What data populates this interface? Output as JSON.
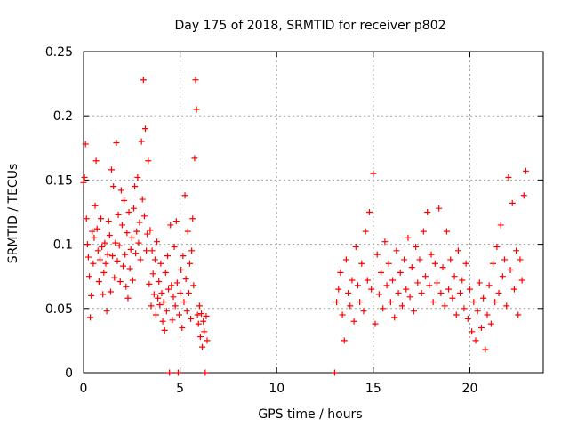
{
  "chart_data": {
    "type": "scatter",
    "title": "Day 175 of 2018, SRMTID for receiver p802",
    "xlabel": "GPS time / hours",
    "ylabel": "SRMTID / TECUs",
    "xlim": [
      0,
      23.8
    ],
    "ylim": [
      0,
      0.25
    ],
    "xticks": [
      0,
      5,
      10,
      15,
      20
    ],
    "yticks": [
      0,
      0.05,
      0.1,
      0.15,
      0.2,
      0.25
    ],
    "ytick_labels": [
      "0",
      "0.05",
      "0.1",
      "0.15",
      "0.2",
      "0.25"
    ],
    "grid": true,
    "marker": "+",
    "color": "#ff0000",
    "series": [
      {
        "name": "SRMTID",
        "points": [
          [
            0.0,
            0.148
          ],
          [
            0.05,
            0.152
          ],
          [
            0.1,
            0.178
          ],
          [
            0.15,
            0.12
          ],
          [
            0.2,
            0.1
          ],
          [
            0.25,
            0.09
          ],
          [
            0.3,
            0.075
          ],
          [
            0.35,
            0.043
          ],
          [
            0.4,
            0.06
          ],
          [
            0.45,
            0.11
          ],
          [
            0.5,
            0.085
          ],
          [
            0.55,
            0.105
          ],
          [
            0.6,
            0.13
          ],
          [
            0.65,
            0.165
          ],
          [
            0.7,
            0.112
          ],
          [
            0.75,
            0.095
          ],
          [
            0.8,
            0.071
          ],
          [
            0.85,
            0.088
          ],
          [
            0.9,
            0.12
          ],
          [
            0.95,
            0.098
          ],
          [
            1.0,
            0.061
          ],
          [
            1.05,
            0.078
          ],
          [
            1.1,
            0.101
          ],
          [
            1.15,
            0.085
          ],
          [
            1.2,
            0.048
          ],
          [
            1.25,
            0.092
          ],
          [
            1.3,
            0.118
          ],
          [
            1.35,
            0.107
          ],
          [
            1.4,
            0.063
          ],
          [
            1.45,
            0.158
          ],
          [
            1.5,
            0.091
          ],
          [
            1.55,
            0.145
          ],
          [
            1.6,
            0.074
          ],
          [
            1.65,
            0.101
          ],
          [
            1.7,
            0.179
          ],
          [
            1.75,
            0.087
          ],
          [
            1.8,
            0.123
          ],
          [
            1.85,
            0.099
          ],
          [
            1.9,
            0.071
          ],
          [
            1.95,
            0.142
          ],
          [
            2.0,
            0.115
          ],
          [
            2.05,
            0.083
          ],
          [
            2.1,
            0.134
          ],
          [
            2.15,
            0.092
          ],
          [
            2.2,
            0.067
          ],
          [
            2.25,
            0.109
          ],
          [
            2.3,
            0.058
          ],
          [
            2.35,
            0.125
          ],
          [
            2.4,
            0.081
          ],
          [
            2.45,
            0.096
          ],
          [
            2.5,
            0.105
          ],
          [
            2.55,
            0.072
          ],
          [
            2.6,
            0.128
          ],
          [
            2.65,
            0.145
          ],
          [
            2.7,
            0.093
          ],
          [
            2.75,
            0.11
          ],
          [
            2.8,
            0.152
          ],
          [
            2.85,
            0.101
          ],
          [
            2.9,
            0.117
          ],
          [
            2.95,
            0.088
          ],
          [
            3.0,
            0.18
          ],
          [
            3.05,
            0.135
          ],
          [
            3.1,
            0.228
          ],
          [
            3.15,
            0.122
          ],
          [
            3.2,
            0.19
          ],
          [
            3.25,
            0.095
          ],
          [
            3.3,
            0.108
          ],
          [
            3.35,
            0.165
          ],
          [
            3.4,
            0.069
          ],
          [
            3.45,
            0.111
          ],
          [
            3.5,
            0.052
          ],
          [
            3.55,
            0.095
          ],
          [
            3.6,
            0.077
          ],
          [
            3.65,
            0.061
          ],
          [
            3.7,
            0.088
          ],
          [
            3.75,
            0.045
          ],
          [
            3.8,
            0.102
          ],
          [
            3.85,
            0.058
          ],
          [
            3.9,
            0.071
          ],
          [
            3.95,
            0.053
          ],
          [
            4.0,
            0.085
          ],
          [
            4.05,
            0.062
          ],
          [
            4.1,
            0.04
          ],
          [
            4.15,
            0.055
          ],
          [
            4.2,
            0.033
          ],
          [
            4.25,
            0.078
          ],
          [
            4.3,
            0.048
          ],
          [
            4.35,
            0.091
          ],
          [
            4.4,
            0.065
          ],
          [
            4.45,
            0.0
          ],
          [
            4.5,
            0.115
          ],
          [
            4.55,
            0.068
          ],
          [
            4.6,
            0.041
          ],
          [
            4.65,
            0.059
          ],
          [
            4.7,
            0.098
          ],
          [
            4.75,
            0.052
          ],
          [
            4.8,
            0.118
          ],
          [
            4.85,
            0.07
          ],
          [
            4.9,
            0.0
          ],
          [
            4.95,
            0.045
          ],
          [
            5.0,
            0.062
          ],
          [
            5.05,
            0.08
          ],
          [
            5.1,
            0.035
          ],
          [
            5.15,
            0.091
          ],
          [
            5.2,
            0.055
          ],
          [
            5.25,
            0.138
          ],
          [
            5.3,
            0.073
          ],
          [
            5.35,
            0.048
          ],
          [
            5.4,
            0.11
          ],
          [
            5.45,
            0.062
          ],
          [
            5.5,
            0.085
          ],
          [
            5.55,
            0.042
          ],
          [
            5.6,
            0.095
          ],
          [
            5.65,
            0.12
          ],
          [
            5.7,
            0.068
          ],
          [
            5.75,
            0.167
          ],
          [
            5.8,
            0.228
          ],
          [
            5.85,
            0.205
          ],
          [
            5.9,
            0.045
          ],
          [
            5.95,
            0.038
          ],
          [
            6.0,
            0.052
          ],
          [
            6.05,
            0.028
          ],
          [
            6.1,
            0.046
          ],
          [
            6.15,
            0.02
          ],
          [
            6.2,
            0.04
          ],
          [
            6.25,
            0.032
          ],
          [
            6.3,
            0.0
          ],
          [
            6.35,
            0.044
          ],
          [
            6.4,
            0.025
          ],
          [
            13.0,
            0.0
          ],
          [
            13.1,
            0.055
          ],
          [
            13.2,
            0.065
          ],
          [
            13.3,
            0.078
          ],
          [
            13.4,
            0.045
          ],
          [
            13.5,
            0.025
          ],
          [
            13.6,
            0.088
          ],
          [
            13.7,
            0.062
          ],
          [
            13.8,
            0.052
          ],
          [
            13.9,
            0.072
          ],
          [
            14.0,
            0.04
          ],
          [
            14.1,
            0.098
          ],
          [
            14.2,
            0.068
          ],
          [
            14.3,
            0.055
          ],
          [
            14.4,
            0.085
          ],
          [
            14.5,
            0.048
          ],
          [
            14.6,
            0.11
          ],
          [
            14.7,
            0.072
          ],
          [
            14.8,
            0.125
          ],
          [
            14.9,
            0.065
          ],
          [
            15.0,
            0.155
          ],
          [
            15.1,
            0.038
          ],
          [
            15.2,
            0.092
          ],
          [
            15.3,
            0.061
          ],
          [
            15.4,
            0.078
          ],
          [
            15.5,
            0.05
          ],
          [
            15.6,
            0.102
          ],
          [
            15.7,
            0.068
          ],
          [
            15.8,
            0.085
          ],
          [
            15.9,
            0.055
          ],
          [
            16.0,
            0.072
          ],
          [
            16.1,
            0.043
          ],
          [
            16.2,
            0.095
          ],
          [
            16.3,
            0.062
          ],
          [
            16.4,
            0.078
          ],
          [
            16.5,
            0.052
          ],
          [
            16.6,
            0.088
          ],
          [
            16.7,
            0.065
          ],
          [
            16.8,
            0.105
          ],
          [
            16.9,
            0.059
          ],
          [
            17.0,
            0.082
          ],
          [
            17.1,
            0.048
          ],
          [
            17.2,
            0.098
          ],
          [
            17.3,
            0.07
          ],
          [
            17.4,
            0.088
          ],
          [
            17.5,
            0.062
          ],
          [
            17.6,
            0.11
          ],
          [
            17.7,
            0.075
          ],
          [
            17.8,
            0.125
          ],
          [
            17.9,
            0.068
          ],
          [
            18.0,
            0.092
          ],
          [
            18.1,
            0.055
          ],
          [
            18.2,
            0.085
          ],
          [
            18.3,
            0.07
          ],
          [
            18.4,
            0.128
          ],
          [
            18.5,
            0.062
          ],
          [
            18.6,
            0.082
          ],
          [
            18.7,
            0.052
          ],
          [
            18.8,
            0.11
          ],
          [
            18.9,
            0.065
          ],
          [
            19.0,
            0.088
          ],
          [
            19.1,
            0.058
          ],
          [
            19.2,
            0.075
          ],
          [
            19.3,
            0.045
          ],
          [
            19.4,
            0.095
          ],
          [
            19.5,
            0.062
          ],
          [
            19.6,
            0.072
          ],
          [
            19.7,
            0.05
          ],
          [
            19.8,
            0.085
          ],
          [
            19.9,
            0.042
          ],
          [
            20.0,
            0.065
          ],
          [
            20.1,
            0.032
          ],
          [
            20.2,
            0.055
          ],
          [
            20.3,
            0.025
          ],
          [
            20.4,
            0.048
          ],
          [
            20.5,
            0.07
          ],
          [
            20.6,
            0.035
          ],
          [
            20.7,
            0.058
          ],
          [
            20.8,
            0.018
          ],
          [
            20.9,
            0.045
          ],
          [
            21.0,
            0.068
          ],
          [
            21.1,
            0.038
          ],
          [
            21.2,
            0.085
          ],
          [
            21.3,
            0.055
          ],
          [
            21.4,
            0.098
          ],
          [
            21.5,
            0.062
          ],
          [
            21.6,
            0.115
          ],
          [
            21.7,
            0.075
          ],
          [
            21.8,
            0.088
          ],
          [
            21.9,
            0.052
          ],
          [
            22.0,
            0.152
          ],
          [
            22.1,
            0.08
          ],
          [
            22.2,
            0.132
          ],
          [
            22.3,
            0.065
          ],
          [
            22.4,
            0.095
          ],
          [
            22.5,
            0.045
          ],
          [
            22.6,
            0.088
          ],
          [
            22.7,
            0.072
          ],
          [
            22.8,
            0.138
          ],
          [
            22.9,
            0.157
          ]
        ]
      }
    ]
  }
}
